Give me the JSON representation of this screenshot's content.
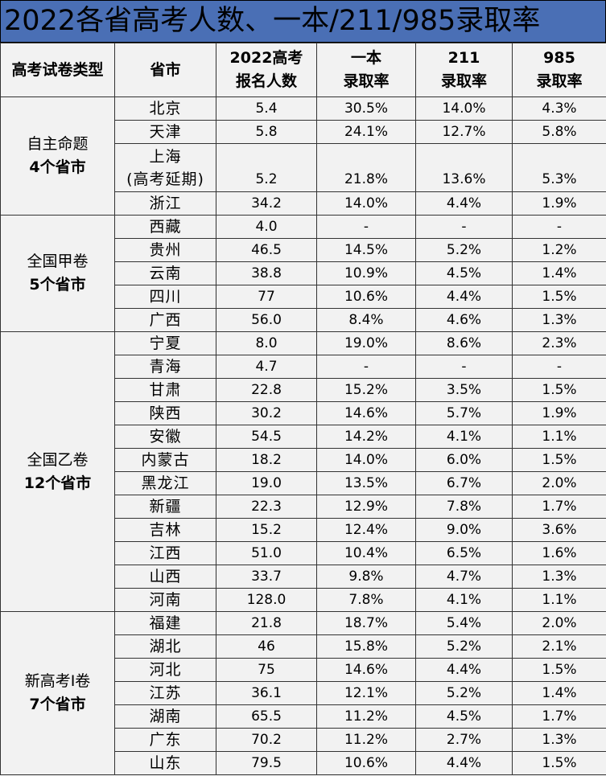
{
  "title": "2022各省高考人数、一本/211/985录取率",
  "headers": {
    "type": "高考试卷类型",
    "province": "省市",
    "applicants_l1": "2022高考",
    "applicants_l2": "报名人数",
    "tier1_l1": "一本",
    "tier1_l2": "录取率",
    "u211_l1": "211",
    "u211_l2": "录取率",
    "u985_l1": "985",
    "u985_l2": "录取率"
  },
  "groups": [
    {
      "name": "自主命题",
      "count": "4个省市",
      "rows": [
        {
          "province": "北京",
          "applicants": "5.4",
          "tier1": "30.5%",
          "u211": "14.0%",
          "u985": "4.3%"
        },
        {
          "province": "天津",
          "applicants": "5.8",
          "tier1": "24.1%",
          "u211": "12.7%",
          "u985": "5.8%"
        },
        {
          "province": "上海",
          "province_note": "(高考延期)",
          "applicants": "5.2",
          "tier1": "21.8%",
          "u211": "13.6%",
          "u985": "5.3%"
        },
        {
          "province": "浙江",
          "applicants": "34.2",
          "tier1": "14.0%",
          "u211": "4.4%",
          "u985": "1.9%"
        }
      ]
    },
    {
      "name": "全国甲卷",
      "count": "5个省市",
      "rows": [
        {
          "province": "西藏",
          "applicants": "4.0",
          "tier1": "-",
          "u211": "-",
          "u985": "-"
        },
        {
          "province": "贵州",
          "applicants": "46.5",
          "tier1": "14.5%",
          "u211": "5.2%",
          "u985": "1.2%"
        },
        {
          "province": "云南",
          "applicants": "38.8",
          "tier1": "10.9%",
          "u211": "4.5%",
          "u985": "1.4%"
        },
        {
          "province": "四川",
          "applicants": "77",
          "tier1": "10.6%",
          "u211": "4.4%",
          "u985": "1.5%"
        },
        {
          "province": "广西",
          "applicants": "56.0",
          "tier1": "8.4%",
          "u211": "4.6%",
          "u985": "1.3%"
        }
      ]
    },
    {
      "name": "全国乙卷",
      "count": "12个省市",
      "rows": [
        {
          "province": "宁夏",
          "applicants": "8.0",
          "tier1": "19.0%",
          "u211": "8.6%",
          "u985": "2.3%"
        },
        {
          "province": "青海",
          "applicants": "4.7",
          "tier1": "-",
          "u211": "-",
          "u985": "-"
        },
        {
          "province": "甘肃",
          "applicants": "22.8",
          "tier1": "15.2%",
          "u211": "3.5%",
          "u985": "1.5%"
        },
        {
          "province": "陕西",
          "applicants": "30.2",
          "tier1": "14.6%",
          "u211": "5.7%",
          "u985": "1.9%"
        },
        {
          "province": "安徽",
          "applicants": "54.5",
          "tier1": "14.2%",
          "u211": "4.1%",
          "u985": "1.1%"
        },
        {
          "province": "内蒙古",
          "applicants": "18.2",
          "tier1": "14.0%",
          "u211": "6.0%",
          "u985": "1.5%"
        },
        {
          "province": "黑龙江",
          "applicants": "19.0",
          "tier1": "13.5%",
          "u211": "6.7%",
          "u985": "2.0%"
        },
        {
          "province": "新疆",
          "applicants": "22.3",
          "tier1": "12.9%",
          "u211": "7.8%",
          "u985": "1.7%"
        },
        {
          "province": "吉林",
          "applicants": "15.2",
          "tier1": "12.4%",
          "u211": "9.0%",
          "u985": "3.6%"
        },
        {
          "province": "江西",
          "applicants": "51.0",
          "tier1": "10.4%",
          "u211": "6.5%",
          "u985": "1.6%"
        },
        {
          "province": "山西",
          "applicants": "33.7",
          "tier1": "9.8%",
          "u211": "4.7%",
          "u985": "1.3%"
        },
        {
          "province": "河南",
          "applicants": "128.0",
          "tier1": "7.8%",
          "u211": "4.1%",
          "u985": "1.1%"
        }
      ]
    },
    {
      "name": "新高考I卷",
      "count": "7个省市",
      "rows": [
        {
          "province": "福建",
          "applicants": "21.8",
          "tier1": "18.7%",
          "u211": "5.4%",
          "u985": "2.0%"
        },
        {
          "province": "湖北",
          "applicants": "46",
          "tier1": "15.8%",
          "u211": "5.2%",
          "u985": "2.1%"
        },
        {
          "province": "河北",
          "applicants": "75",
          "tier1": "14.6%",
          "u211": "4.4%",
          "u985": "1.5%"
        },
        {
          "province": "江苏",
          "applicants": "36.1",
          "tier1": "12.1%",
          "u211": "5.2%",
          "u985": "1.4%"
        },
        {
          "province": "湖南",
          "applicants": "65.5",
          "tier1": "11.2%",
          "u211": "4.5%",
          "u985": "1.7%"
        },
        {
          "province": "广东",
          "applicants": "70.2",
          "tier1": "11.2%",
          "u211": "2.7%",
          "u985": "1.3%"
        },
        {
          "province": "山东",
          "applicants": "79.5",
          "tier1": "10.6%",
          "u211": "4.4%",
          "u985": "1.5%"
        }
      ]
    }
  ]
}
